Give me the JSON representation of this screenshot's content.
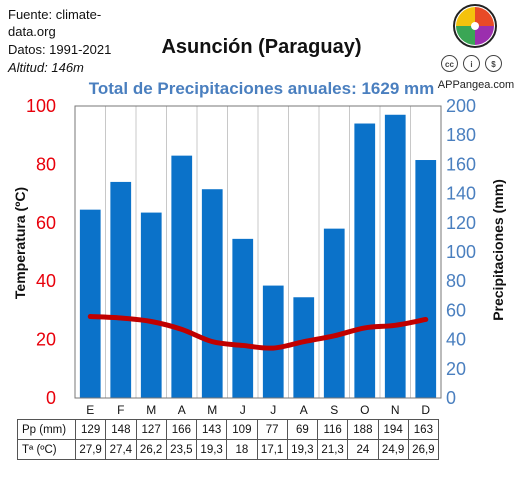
{
  "header": {
    "source_line1": "Fuente: climate-",
    "source_line2": "data.org",
    "period": "Datos: 1991-2021",
    "altitude": "Altitud: 146m"
  },
  "brand": {
    "site": "APPangea.com",
    "license_icons": [
      "cc-icon",
      "by-icon",
      "nc-icon"
    ]
  },
  "chart_data": {
    "type": "bar",
    "title": "Asunción (Paraguay)",
    "subtitle": "Total de Precipitaciones anuales: 1629 mm",
    "categories": [
      "E",
      "F",
      "M",
      "A",
      "M",
      "J",
      "J",
      "A",
      "S",
      "O",
      "N",
      "D"
    ],
    "left_axis": {
      "label": "Temperatura (ºC)",
      "range": [
        0,
        100
      ],
      "ticks": [
        "0",
        "20",
        "40",
        "60",
        "80",
        "100"
      ],
      "color": "#e8000b"
    },
    "right_axis": {
      "label": "Precipitaciones (mm)",
      "range": [
        0,
        200
      ],
      "ticks": [
        "0",
        "20",
        "40",
        "60",
        "80",
        "100",
        "120",
        "140",
        "160",
        "180",
        "200"
      ],
      "color": "#4a7fbf"
    },
    "series": [
      {
        "kind": "bar",
        "axis": "right",
        "color": "#0b72c9",
        "values": [
          129,
          148,
          127,
          166,
          143,
          109,
          77,
          69,
          116,
          188,
          194,
          163
        ]
      },
      {
        "kind": "line",
        "axis": "left",
        "color": "#c00000",
        "values": [
          27.9,
          27.4,
          26.2,
          23.5,
          19.3,
          18,
          17.1,
          19.3,
          21.3,
          24,
          24.9,
          26.9
        ]
      }
    ],
    "grid": "vertical",
    "table": {
      "rows": [
        {
          "label": "Pp (mm)",
          "values": [
            "129",
            "148",
            "127",
            "166",
            "143",
            "109",
            "77",
            "69",
            "116",
            "188",
            "194",
            "163"
          ]
        },
        {
          "label": "Tª (ºC)",
          "values": [
            "27,9",
            "27,4",
            "26,2",
            "23,5",
            "19,3",
            "18",
            "17,1",
            "19,3",
            "21,3",
            "24",
            "24,9",
            "26,9"
          ]
        }
      ]
    }
  }
}
